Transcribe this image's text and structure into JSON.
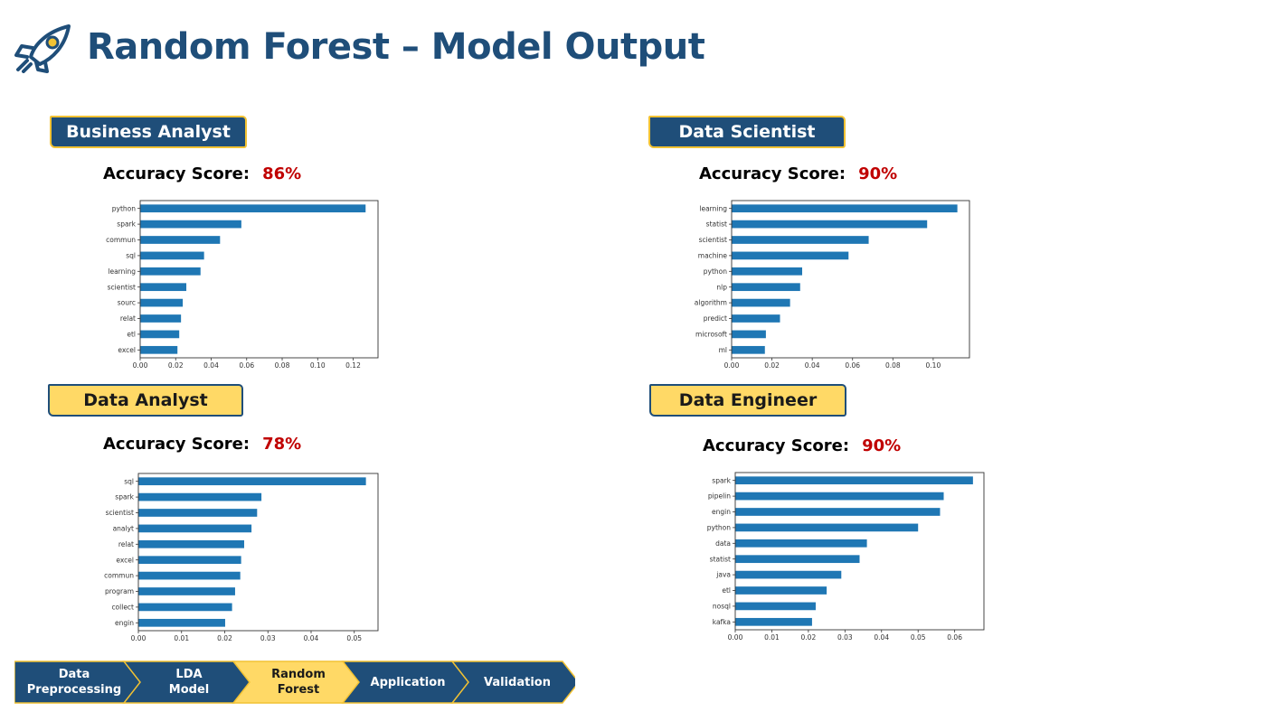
{
  "page": {
    "title": "Random Forest – Model Output",
    "logo": "rocket-icon"
  },
  "sections": [
    {
      "label": "Business Analyst",
      "accuracy_label": "Accuracy Score:",
      "accuracy": "86%"
    },
    {
      "label": "Data Scientist",
      "accuracy_label": "Accuracy Score:",
      "accuracy": "90%"
    },
    {
      "label": "Data Analyst",
      "accuracy_label": "Accuracy Score:",
      "accuracy": "78%"
    },
    {
      "label": "Data Engineer",
      "accuracy_label": "Accuracy Score:",
      "accuracy": "90%"
    }
  ],
  "nav": {
    "steps": [
      {
        "label": "Data\nPreprocessing",
        "active": false
      },
      {
        "label": "LDA\nModel",
        "active": false
      },
      {
        "label": "Random\nForest",
        "active": true
      },
      {
        "label": "Application",
        "active": false
      },
      {
        "label": "Validation",
        "active": false
      }
    ],
    "colors": {
      "default": "#1F4E79",
      "active": "#FFD966",
      "border": "#F2C233"
    }
  },
  "colors": {
    "bar": "#1F77B4",
    "title": "#1F4E79",
    "accuracy": "#C00000"
  },
  "chart_data": [
    {
      "type": "bar",
      "orientation": "horizontal",
      "categories": [
        "python",
        "spark",
        "commun",
        "sql",
        "learning",
        "scientist",
        "sourc",
        "relat",
        "etl",
        "excel"
      ],
      "values": [
        0.127,
        0.057,
        0.045,
        0.036,
        0.034,
        0.026,
        0.024,
        0.023,
        0.022,
        0.021
      ],
      "xlim": [
        0,
        0.134
      ],
      "xticks": [
        "0.00",
        "0.02",
        "0.04",
        "0.06",
        "0.08",
        "0.10",
        "0.12"
      ],
      "xtick_values": [
        0,
        0.02,
        0.04,
        0.06,
        0.08,
        0.1,
        0.12
      ]
    },
    {
      "type": "bar",
      "orientation": "horizontal",
      "categories": [
        "learning",
        "statist",
        "scientist",
        "machine",
        "python",
        "nlp",
        "algorithm",
        "predict",
        "microsoft",
        "ml"
      ],
      "values": [
        0.112,
        0.097,
        0.068,
        0.058,
        0.035,
        0.034,
        0.029,
        0.024,
        0.017,
        0.0165
      ],
      "xlim": [
        0,
        0.118
      ],
      "xticks": [
        "0.00",
        "0.02",
        "0.04",
        "0.06",
        "0.08",
        "0.10"
      ],
      "xtick_values": [
        0,
        0.02,
        0.04,
        0.06,
        0.08,
        0.1
      ]
    },
    {
      "type": "bar",
      "orientation": "horizontal",
      "categories": [
        "sql",
        "spark",
        "scientist",
        "analyt",
        "relat",
        "excel",
        "commun",
        "program",
        "collect",
        "engin"
      ],
      "values": [
        0.0527,
        0.0285,
        0.0275,
        0.0262,
        0.0245,
        0.0238,
        0.0236,
        0.0224,
        0.0217,
        0.0201
      ],
      "xlim": [
        0,
        0.0555
      ],
      "xticks": [
        "0.00",
        "0.01",
        "0.02",
        "0.03",
        "0.04",
        "0.05"
      ],
      "xtick_values": [
        0,
        0.01,
        0.02,
        0.03,
        0.04,
        0.05
      ]
    },
    {
      "type": "bar",
      "orientation": "horizontal",
      "categories": [
        "spark",
        "pipelin",
        "engin",
        "python",
        "data",
        "statist",
        "java",
        "etl",
        "nosql",
        "kafka"
      ],
      "values": [
        0.065,
        0.057,
        0.056,
        0.05,
        0.036,
        0.034,
        0.029,
        0.025,
        0.022,
        0.021
      ],
      "xlim": [
        0,
        0.068
      ],
      "xticks": [
        "0.00",
        "0.01",
        "0.02",
        "0.03",
        "0.04",
        "0.05",
        "0.06"
      ],
      "xtick_values": [
        0,
        0.01,
        0.02,
        0.03,
        0.04,
        0.05,
        0.06
      ]
    }
  ]
}
